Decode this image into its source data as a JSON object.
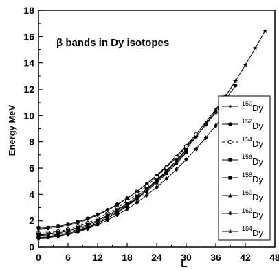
{
  "chart_data": {
    "type": "line",
    "title": "",
    "annotation": "β bands in Dy isotopes",
    "xlabel": "L",
    "ylabel": "Energy  MeV",
    "xlim": [
      0,
      48
    ],
    "ylim": [
      0,
      18
    ],
    "xticks": [
      0,
      6,
      12,
      18,
      24,
      30,
      36,
      42,
      48
    ],
    "yticks": [
      0,
      2,
      4,
      6,
      8,
      10,
      12,
      14,
      16,
      18
    ],
    "x_tick_labels": [
      "0",
      "6",
      "12",
      "18",
      "24",
      "30",
      "36",
      "42",
      "48"
    ],
    "y_tick_labels": [
      "0",
      "2",
      "4",
      "6",
      "8",
      "10",
      "12",
      "14",
      "16",
      "18"
    ],
    "legend_position": "right",
    "series": [
      {
        "name": "Dy",
        "mass": "150",
        "marker": "smalldot",
        "dashed": false,
        "e0": 1.35,
        "a": 0.00685,
        "lmax": 40
      },
      {
        "name": "Dy",
        "mass": "152",
        "marker": "circle",
        "dashed": false,
        "e0": 1.45,
        "a": 0.0066,
        "lmax": 40
      },
      {
        "name": "Dy",
        "mass": "154",
        "marker": "opencircle",
        "dashed": true,
        "e0": 1.05,
        "a": 0.0071,
        "lmax": 32
      },
      {
        "name": "Dy",
        "mass": "156",
        "marker": "square",
        "dashed": false,
        "e0": 0.95,
        "a": 0.0069,
        "lmax": 30
      },
      {
        "name": "Dy",
        "mass": "158",
        "marker": "square",
        "dashed": false,
        "e0": 0.85,
        "a": 0.0069,
        "lmax": 30
      },
      {
        "name": "Dy",
        "mass": "160",
        "marker": "triangle",
        "dashed": false,
        "e0": 0.75,
        "a": 0.0069,
        "lmax": 30
      },
      {
        "name": "Dy",
        "mass": "162",
        "marker": "diamond",
        "dashed": false,
        "e0": 0.7,
        "a": 0.0064,
        "lmax": 40
      },
      {
        "name": "Dy",
        "mass": "164",
        "marker": "star",
        "dashed": false,
        "e0": 0.65,
        "a": 0.0073,
        "lmax": 46
      }
    ]
  }
}
